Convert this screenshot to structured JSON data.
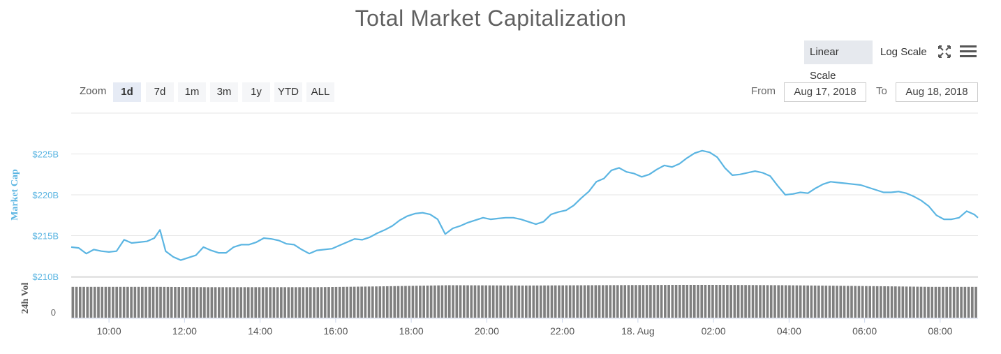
{
  "title": "Total Market Capitalization",
  "scale_buttons": {
    "linear": "Linear Scale",
    "log": "Log Scale"
  },
  "icons": {
    "fullscreen": "fullscreen-icon",
    "menu": "hamburger-menu-icon"
  },
  "zoom": {
    "label": "Zoom",
    "options": [
      "1d",
      "7d",
      "1m",
      "3m",
      "1y",
      "YTD",
      "ALL"
    ],
    "selected": "1d"
  },
  "range": {
    "from_label": "From",
    "from_value": "Aug 17, 2018",
    "to_label": "To",
    "to_value": "Aug 18, 2018"
  },
  "colors": {
    "line": "#5bb5e2",
    "axis_label": "#5bb5e2",
    "volume": "#7f7f7f",
    "grid": "#e6e6e6"
  },
  "chart_data": {
    "type": "line",
    "title": "Total Market Capitalization",
    "ylabel": "Market Cap",
    "ylabel2": "24h Vol",
    "yticks": [
      "$210B",
      "$215B",
      "$220B",
      "$225B"
    ],
    "ytick_values": [
      210,
      215,
      220,
      225
    ],
    "vol_ticks": [
      "0"
    ],
    "ylim": [
      210,
      230
    ],
    "xticks": [
      "10:00",
      "12:00",
      "14:00",
      "16:00",
      "18:00",
      "20:00",
      "22:00",
      "18. Aug",
      "02:00",
      "04:00",
      "06:00",
      "08:00"
    ],
    "xtick_hours": [
      10,
      12,
      14,
      16,
      18,
      20,
      22,
      24,
      26,
      28,
      30,
      32
    ],
    "xlim": [
      9,
      33
    ],
    "series": [
      {
        "unit": "$B",
        "points": [
          [
            9.0,
            213.6
          ],
          [
            9.2,
            213.5
          ],
          [
            9.4,
            212.8
          ],
          [
            9.6,
            213.3
          ],
          [
            9.8,
            213.1
          ],
          [
            10.0,
            213.0
          ],
          [
            10.2,
            213.1
          ],
          [
            10.4,
            214.5
          ],
          [
            10.6,
            214.1
          ],
          [
            10.8,
            214.2
          ],
          [
            11.0,
            214.3
          ],
          [
            11.2,
            214.7
          ],
          [
            11.35,
            215.7
          ],
          [
            11.5,
            213.1
          ],
          [
            11.7,
            212.4
          ],
          [
            11.9,
            212.0
          ],
          [
            12.1,
            212.3
          ],
          [
            12.3,
            212.6
          ],
          [
            12.5,
            213.6
          ],
          [
            12.7,
            213.2
          ],
          [
            12.9,
            212.9
          ],
          [
            13.1,
            212.9
          ],
          [
            13.3,
            213.6
          ],
          [
            13.5,
            213.9
          ],
          [
            13.7,
            213.9
          ],
          [
            13.9,
            214.2
          ],
          [
            14.1,
            214.7
          ],
          [
            14.3,
            214.6
          ],
          [
            14.5,
            214.4
          ],
          [
            14.7,
            214.0
          ],
          [
            14.9,
            213.9
          ],
          [
            15.1,
            213.3
          ],
          [
            15.3,
            212.8
          ],
          [
            15.5,
            213.2
          ],
          [
            15.7,
            213.3
          ],
          [
            15.9,
            213.4
          ],
          [
            16.1,
            213.8
          ],
          [
            16.3,
            214.2
          ],
          [
            16.5,
            214.6
          ],
          [
            16.7,
            214.5
          ],
          [
            16.9,
            214.8
          ],
          [
            17.1,
            215.3
          ],
          [
            17.3,
            215.7
          ],
          [
            17.5,
            216.2
          ],
          [
            17.7,
            216.9
          ],
          [
            17.9,
            217.4
          ],
          [
            18.1,
            217.7
          ],
          [
            18.3,
            217.8
          ],
          [
            18.5,
            217.6
          ],
          [
            18.7,
            217.0
          ],
          [
            18.9,
            215.2
          ],
          [
            19.1,
            215.9
          ],
          [
            19.3,
            216.2
          ],
          [
            19.5,
            216.6
          ],
          [
            19.7,
            216.9
          ],
          [
            19.9,
            217.2
          ],
          [
            20.1,
            217.0
          ],
          [
            20.3,
            217.1
          ],
          [
            20.5,
            217.2
          ],
          [
            20.7,
            217.2
          ],
          [
            20.9,
            217.0
          ],
          [
            21.1,
            216.7
          ],
          [
            21.3,
            216.4
          ],
          [
            21.5,
            216.7
          ],
          [
            21.7,
            217.6
          ],
          [
            21.9,
            217.9
          ],
          [
            22.1,
            218.1
          ],
          [
            22.3,
            218.7
          ],
          [
            22.5,
            219.6
          ],
          [
            22.7,
            220.4
          ],
          [
            22.9,
            221.6
          ],
          [
            23.1,
            222.0
          ],
          [
            23.3,
            223.0
          ],
          [
            23.5,
            223.3
          ],
          [
            23.7,
            222.8
          ],
          [
            23.9,
            222.6
          ],
          [
            24.1,
            222.2
          ],
          [
            24.3,
            222.5
          ],
          [
            24.5,
            223.1
          ],
          [
            24.7,
            223.6
          ],
          [
            24.9,
            223.4
          ],
          [
            25.1,
            223.8
          ],
          [
            25.3,
            224.5
          ],
          [
            25.5,
            225.1
          ],
          [
            25.7,
            225.4
          ],
          [
            25.9,
            225.2
          ],
          [
            26.1,
            224.6
          ],
          [
            26.3,
            223.3
          ],
          [
            26.5,
            222.4
          ],
          [
            26.7,
            222.5
          ],
          [
            26.9,
            222.7
          ],
          [
            27.1,
            222.9
          ],
          [
            27.3,
            222.7
          ],
          [
            27.5,
            222.3
          ],
          [
            27.7,
            221.1
          ],
          [
            27.9,
            220.0
          ],
          [
            28.1,
            220.1
          ],
          [
            28.3,
            220.3
          ],
          [
            28.5,
            220.2
          ],
          [
            28.7,
            220.8
          ],
          [
            28.9,
            221.3
          ],
          [
            29.1,
            221.6
          ],
          [
            29.3,
            221.5
          ],
          [
            29.5,
            221.4
          ],
          [
            29.7,
            221.3
          ],
          [
            29.9,
            221.2
          ],
          [
            30.1,
            220.9
          ],
          [
            30.3,
            220.6
          ],
          [
            30.5,
            220.3
          ],
          [
            30.7,
            220.3
          ],
          [
            30.9,
            220.4
          ],
          [
            31.1,
            220.2
          ],
          [
            31.3,
            219.8
          ],
          [
            31.5,
            219.3
          ],
          [
            31.7,
            218.6
          ],
          [
            31.9,
            217.5
          ],
          [
            32.1,
            217.0
          ],
          [
            32.3,
            217.0
          ],
          [
            32.5,
            217.2
          ],
          [
            32.7,
            218.0
          ],
          [
            32.9,
            217.6
          ],
          [
            33.0,
            217.2
          ]
        ]
      }
    ],
    "volume": {
      "bar_count": 248,
      "relative_levels": [
        [
          9.0,
          0.94
        ],
        [
          11.3,
          0.94
        ],
        [
          12.6,
          0.93
        ],
        [
          15.5,
          0.93
        ],
        [
          16.9,
          0.95
        ],
        [
          18.0,
          0.97
        ],
        [
          19.0,
          0.99
        ],
        [
          21.0,
          0.98
        ],
        [
          22.8,
          0.99
        ],
        [
          25.2,
          1.0
        ],
        [
          26.0,
          1.0
        ],
        [
          27.8,
          0.99
        ],
        [
          29.5,
          0.97
        ],
        [
          30.4,
          0.96
        ],
        [
          31.7,
          0.94
        ],
        [
          33.0,
          0.94
        ]
      ]
    }
  }
}
